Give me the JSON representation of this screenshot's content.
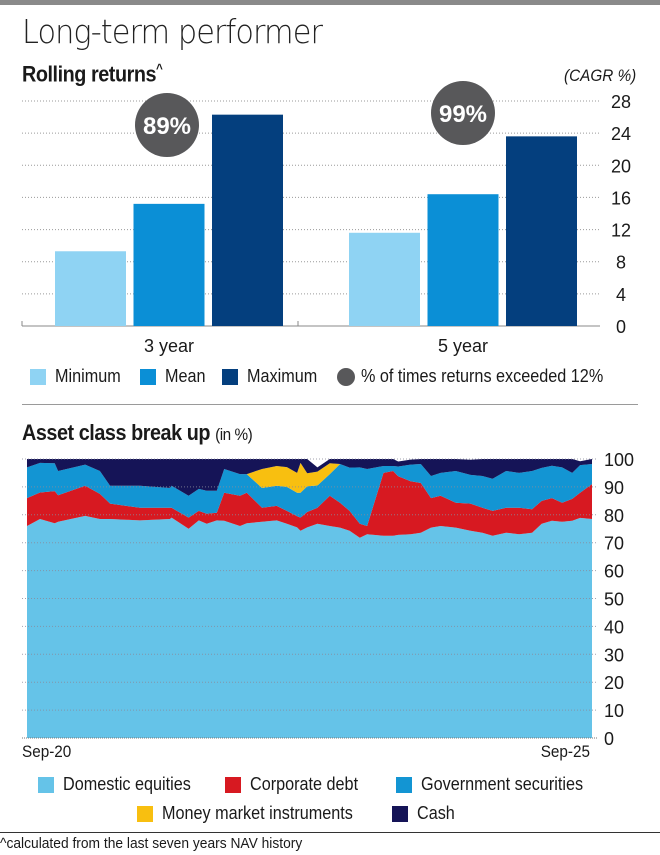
{
  "header": {
    "title": "Long-term performer",
    "footnote": "^calculated from the last seven years NAV history"
  },
  "colors": {
    "minimum": "#8fd3f3",
    "mean": "#0b8fd6",
    "maximum": "#043f7e",
    "bubble": "#58585a",
    "domestic_equities": "#65c3e8",
    "corporate_debt": "#d71921",
    "government_securities": "#1395d3",
    "money_market": "#f8bf10",
    "cash": "#151457"
  },
  "chart_data": [
    {
      "type": "bar",
      "title": "Rolling returns",
      "title_suffix": "^",
      "ylabel": "(CAGR %)",
      "categories": [
        "3 year",
        "5 year"
      ],
      "series": [
        {
          "name": "Minimum",
          "values": [
            9.3,
            11.6
          ]
        },
        {
          "name": "Mean",
          "values": [
            15.2,
            16.4
          ]
        },
        {
          "name": "Maximum",
          "values": [
            26.3,
            23.6
          ]
        }
      ],
      "annotations": [
        {
          "category": "3 year",
          "label": "89%",
          "series_name": "% of times returns exceeded 12%"
        },
        {
          "category": "5 year",
          "label": "99%",
          "series_name": "% of times returns exceeded 12%"
        }
      ],
      "legend": [
        "Minimum",
        "Mean",
        "Maximum",
        "% of times returns exceeded 12%"
      ],
      "ylim": [
        0,
        28
      ],
      "yticks": [
        "0",
        "4",
        "8",
        "12",
        "16",
        "20",
        "24",
        "28"
      ],
      "grid": true,
      "legend_position": "bottom"
    },
    {
      "type": "area",
      "title": "Asset class break up",
      "title_unit": "(in %)",
      "xlabel_start": "Sep-20",
      "xlabel_end": "Sep-25",
      "ylim": [
        0,
        100
      ],
      "yticks": [
        "0",
        "10",
        "20",
        "30",
        "40",
        "50",
        "60",
        "70",
        "80",
        "90",
        "100"
      ],
      "grid": true,
      "stacked": true,
      "legend": [
        "Domestic equities",
        "Corporate debt",
        "Government securities",
        "Money market instruments",
        "Cash"
      ],
      "legend_position": "bottom",
      "x": [
        0,
        2.3,
        4.9,
        5.5,
        10.3,
        12.9,
        14.7,
        20.0,
        25.3,
        25.6,
        28.6,
        30.4,
        31.8,
        33.6,
        34.9,
        37.7,
        38.9,
        41.6,
        44.2,
        46.0,
        47.8,
        48.4,
        49.6,
        51.4,
        53.6,
        55.4,
        57.1,
        58.9,
        60.2,
        63.1,
        64.8,
        65.7,
        67.9,
        69.7,
        71.5,
        73.2,
        75.9,
        78.5,
        80.6,
        82.4,
        84.8,
        87.1,
        89.4,
        91.1,
        92.9,
        94.7,
        96.5,
        97.9,
        100
      ],
      "series": [
        {
          "name": "Domestic equities",
          "values": [
            76,
            78.5,
            77,
            77.5,
            79.6,
            78.5,
            78.5,
            78,
            78.5,
            79,
            75,
            78,
            76.8,
            78,
            77.9,
            76,
            77,
            77.5,
            78,
            76.8,
            75.5,
            74.3,
            75.5,
            76.8,
            76,
            75.4,
            74.3,
            71.8,
            73,
            72.5,
            72.5,
            72.8,
            73,
            73.6,
            75.4,
            76,
            75.4,
            74.3,
            73.6,
            72.5,
            73.6,
            73,
            73.6,
            76.8,
            77.9,
            77.5,
            77.9,
            78.9,
            78.5
          ]
        },
        {
          "name": "Corporate debt",
          "values": [
            10,
            9.5,
            11.5,
            9.5,
            10.8,
            9,
            5.5,
            4.5,
            4,
            3.5,
            4,
            3.4,
            3.6,
            2.7,
            10,
            10.8,
            10.9,
            5,
            5.2,
            4.6,
            4,
            4.7,
            5.5,
            5.7,
            10.8,
            8.9,
            7.1,
            5,
            3,
            22.5,
            23.2,
            21,
            19,
            17.8,
            10.6,
            10.8,
            8.9,
            9.7,
            8.9,
            8.9,
            8.9,
            9.5,
            8.4,
            8.2,
            8.1,
            6.8,
            7.8,
            9,
            12.5
          ]
        },
        {
          "name": "Government securities",
          "values": [
            11,
            10.6,
            10,
            8.7,
            7.6,
            8.2,
            6.4,
            7.9,
            7.1,
            7.9,
            7.8,
            7.9,
            8.2,
            7.9,
            8.5,
            7.8,
            6.7,
            7.1,
            7.2,
            8.6,
            8.4,
            8.9,
            9.2,
            8,
            7.8,
            13.9,
            15.5,
            20.2,
            20.4,
            2.5,
            1.8,
            3.5,
            6,
            6.8,
            7.9,
            8.2,
            11.4,
            10.3,
            11.4,
            11.5,
            13.2,
            12.5,
            13.7,
            11.8,
            11.6,
            12.7,
            9.3,
            9.9,
            7.2
          ]
        },
        {
          "name": "Money market instruments",
          "values": [
            0,
            0,
            0,
            0,
            0,
            0,
            0,
            0,
            0,
            0,
            0,
            0,
            0,
            0,
            0,
            0,
            0,
            6.8,
            7.1,
            7.1,
            7.1,
            10.7,
            4.7,
            5.0,
            3.9,
            0,
            0,
            0,
            0,
            0,
            0,
            0,
            0,
            0,
            0,
            0,
            0,
            0,
            0,
            0,
            0,
            0,
            0,
            0,
            0,
            0,
            0,
            0,
            0
          ]
        },
        {
          "name": "Cash",
          "values": [
            3,
            1.4,
            1.5,
            4.3,
            2,
            4.3,
            9.6,
            9.6,
            10.4,
            9.6,
            13.2,
            10.7,
            11.4,
            11.4,
            3.6,
            5.4,
            5.4,
            3.6,
            2.5,
            3.6,
            5.0,
            1.4,
            5.1,
            1.5,
            1.5,
            1.8,
            3.1,
            3.0,
            3.6,
            2.5,
            2.5,
            1.8,
            1.8,
            1.8,
            6.1,
            5,
            4.3,
            5.4,
            6.1,
            7.1,
            4.3,
            5,
            4.3,
            3.2,
            2.5,
            5,
            5,
            1.4,
            1.8
          ]
        }
      ]
    }
  ]
}
